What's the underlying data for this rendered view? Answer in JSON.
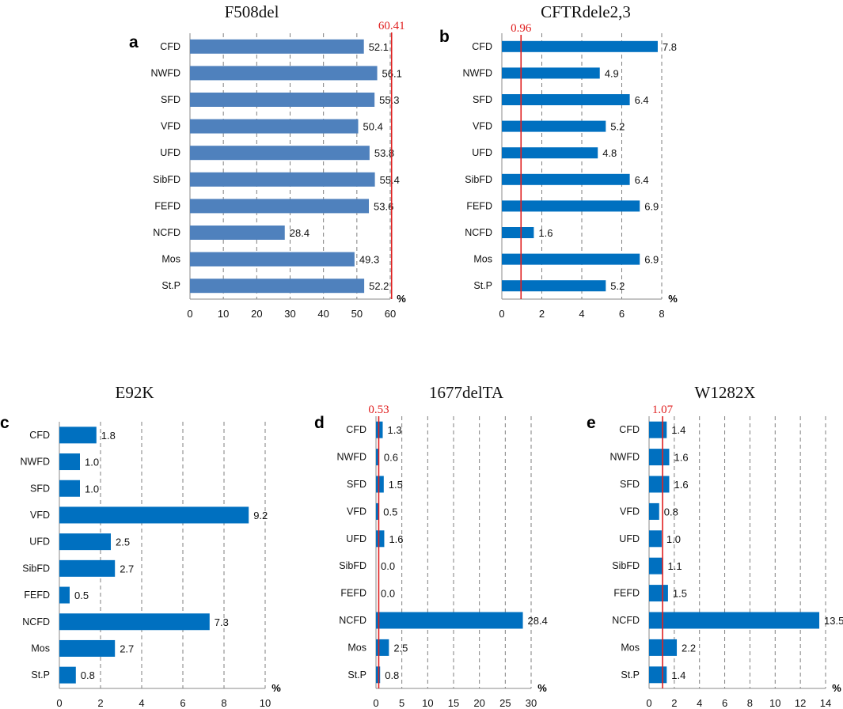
{
  "chart_data": [
    {
      "panel": "a",
      "type": "bar",
      "orientation": "horizontal",
      "title": "F508del",
      "categories": [
        "CFD",
        "NWFD",
        "SFD",
        "VFD",
        "UFD",
        "SibFD",
        "FEFD",
        "NCFD",
        "Mos",
        "St.P"
      ],
      "values": [
        52.1,
        56.1,
        55.3,
        50.4,
        53.8,
        55.4,
        53.6,
        28.4,
        49.3,
        52.2
      ],
      "value_labels": [
        "52.1",
        "56.1",
        "55.3",
        "50.4",
        "53.8",
        "55.4",
        "53.6",
        "28.4",
        "49.3",
        "52.2"
      ],
      "xlim": [
        0,
        60
      ],
      "xticks": [
        0,
        10,
        20,
        30,
        40,
        50,
        60
      ],
      "xlabel": "%",
      "reference_line": {
        "value": 60.41,
        "label": "60.41",
        "color": "#e02020"
      },
      "bar_color": "#4f81bd"
    },
    {
      "panel": "b",
      "type": "bar",
      "orientation": "horizontal",
      "title": "CFTRdele2,3",
      "categories": [
        "CFD",
        "NWFD",
        "SFD",
        "VFD",
        "UFD",
        "SibFD",
        "FEFD",
        "NCFD",
        "Mos",
        "St.P"
      ],
      "values": [
        7.8,
        4.9,
        6.4,
        5.2,
        4.8,
        6.4,
        6.9,
        1.6,
        6.9,
        5.2
      ],
      "value_labels": [
        "7.8",
        "4.9",
        "6.4",
        "5.2",
        "4.8",
        "6.4",
        "6.9",
        "1.6",
        "6.9",
        "5.2"
      ],
      "xlim": [
        0,
        8
      ],
      "xticks": [
        0,
        2,
        4,
        6,
        8
      ],
      "xlabel": "%",
      "reference_line": {
        "value": 0.96,
        "label": "0.96",
        "color": "#e02020"
      },
      "bar_color": "#0070c0"
    },
    {
      "panel": "c",
      "type": "bar",
      "orientation": "horizontal",
      "title": "E92K",
      "categories": [
        "CFD",
        "NWFD",
        "SFD",
        "VFD",
        "UFD",
        "SibFD",
        "FEFD",
        "NCFD",
        "Mos",
        "St.P"
      ],
      "values": [
        1.8,
        1.0,
        1.0,
        9.2,
        2.5,
        2.7,
        0.5,
        7.3,
        2.7,
        0.8
      ],
      "value_labels": [
        "1.8",
        "1.0",
        "1.0",
        "9.2",
        "2.5",
        "2.7",
        "0.5",
        "7.3",
        "2.7",
        "0.8"
      ],
      "xlim": [
        0,
        10
      ],
      "xticks": [
        0,
        2,
        4,
        6,
        8,
        10
      ],
      "xlabel": "%",
      "reference_line": null,
      "bar_color": "#0070c0"
    },
    {
      "panel": "d",
      "type": "bar",
      "orientation": "horizontal",
      "title": "1677delTA",
      "categories": [
        "CFD",
        "NWFD",
        "SFD",
        "VFD",
        "UFD",
        "SibFD",
        "FEFD",
        "NCFD",
        "Mos",
        "St.P"
      ],
      "values": [
        1.3,
        0.6,
        1.5,
        0.5,
        1.6,
        0.0,
        0.0,
        28.4,
        2.5,
        0.8
      ],
      "value_labels": [
        "1.3",
        "0.6",
        "1.5",
        "0.5",
        "1.6",
        "0.0",
        "0.0",
        "28.4",
        "2.5",
        "0.8"
      ],
      "xlim": [
        0,
        30
      ],
      "xticks": [
        0,
        5,
        10,
        15,
        20,
        25,
        30
      ],
      "xlabel": "%",
      "reference_line": {
        "value": 0.53,
        "label": "0.53",
        "color": "#e02020"
      },
      "bar_color": "#0070c0"
    },
    {
      "panel": "e",
      "type": "bar",
      "orientation": "horizontal",
      "title": "W1282X",
      "categories": [
        "CFD",
        "NWFD",
        "SFD",
        "VFD",
        "UFD",
        "SibFD",
        "FEFD",
        "NCFD",
        "Mos",
        "St.P"
      ],
      "values": [
        1.4,
        1.6,
        1.6,
        0.8,
        1.0,
        1.1,
        1.5,
        13.5,
        2.2,
        1.4
      ],
      "value_labels": [
        "1.4",
        "1.6",
        "1.6",
        "0.8",
        "1.0",
        "1.1",
        "1.5",
        "13.5",
        "2.2",
        "1.4"
      ],
      "xlim": [
        0,
        14
      ],
      "xticks": [
        0,
        2,
        4,
        6,
        8,
        10,
        12,
        14
      ],
      "xlabel": "%",
      "reference_line": {
        "value": 1.07,
        "label": "1.07",
        "color": "#e02020"
      },
      "bar_color": "#0070c0"
    }
  ]
}
